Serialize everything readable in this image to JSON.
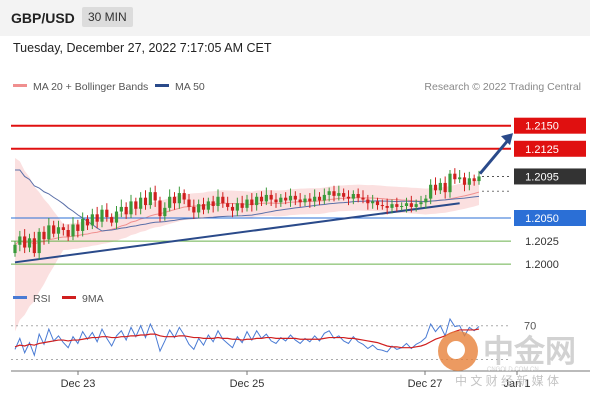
{
  "header": {
    "pair": "GBP/USD",
    "timeframe": "30 MIN"
  },
  "datetime": "Tuesday, December 27, 2022 7:17:05 AM CET",
  "legend": {
    "bb": "MA 20 + Bollinger Bands",
    "ma50": "MA 50",
    "rsi": "RSI",
    "ma9": "9MA",
    "credit": "Research © 2022 Trading Central"
  },
  "watermark": {
    "cn": "中金网",
    "domain": "CNGOLD.COM.CN",
    "tagline": "中 文 财 经 新 媒 体"
  },
  "colors": {
    "resistance": "#e01010",
    "pivot": "#2b6fd6",
    "support": "#6ab04c",
    "current": "#333333",
    "trend": "#2a4a8a",
    "ma50": "#5a6fa8",
    "band": "#f7c7c7",
    "candle_up": "#3a9a3a",
    "candle_down": "#d01f1f",
    "rsi": "#4a7bd4",
    "ma9": "#d01f1f"
  },
  "chart_data": {
    "type": "candlestick",
    "title": "GBP/USD",
    "timeframe": "30 MIN",
    "x_ticks": [
      "Dec 23",
      "Dec 25",
      "Dec 27",
      "Jan 1"
    ],
    "ylim": [
      1.1985,
      1.218
    ],
    "levels": [
      {
        "label": "1.2150",
        "value": 1.215,
        "kind": "resistance"
      },
      {
        "label": "1.2125",
        "value": 1.2125,
        "kind": "resistance"
      },
      {
        "label": "1.2095",
        "value": 1.2095,
        "kind": "current"
      },
      {
        "label": "1.2050",
        "value": 1.205,
        "kind": "pivot"
      },
      {
        "label": "1.2025",
        "value": 1.2025,
        "kind": "support"
      },
      {
        "label": "1.2000",
        "value": 1.2,
        "kind": "support"
      }
    ],
    "trendline": [
      [
        0,
        1.2002
      ],
      [
        92,
        1.2066
      ]
    ],
    "projection": [
      [
        96,
        1.2098
      ],
      [
        104,
        1.2142
      ]
    ],
    "closes": [
      1.2021,
      1.203,
      1.2018,
      1.2028,
      1.2012,
      1.2035,
      1.2027,
      1.2042,
      1.2033,
      1.204,
      1.2037,
      1.203,
      1.2043,
      1.2036,
      1.2049,
      1.2042,
      1.2054,
      1.2046,
      1.2059,
      1.2051,
      1.2045,
      1.2057,
      1.2062,
      1.2054,
      1.2068,
      1.206,
      1.2072,
      1.2064,
      1.2078,
      1.2069,
      1.2052,
      1.2061,
      1.2073,
      1.2066,
      1.2077,
      1.207,
      1.2062,
      1.2056,
      1.2065,
      1.2059,
      1.2068,
      1.2063,
      1.2073,
      1.2066,
      1.2062,
      1.2058,
      1.2066,
      1.2061,
      1.207,
      1.2064,
      1.2073,
      1.2068,
      1.2075,
      1.207,
      1.2067,
      1.2072,
      1.2069,
      1.2074,
      1.207,
      1.2067,
      1.2071,
      1.2068,
      1.2073,
      1.2069,
      1.2075,
      1.2079,
      1.2074,
      1.2077,
      1.2073,
      1.2071,
      1.2076,
      1.2072,
      1.207,
      1.2066,
      1.2068,
      1.2064,
      1.2063,
      1.2061,
      1.2065,
      1.2062,
      1.2063,
      1.2066,
      1.2062,
      1.2065,
      1.2067,
      1.2071,
      1.2086,
      1.208,
      1.2088,
      1.2078,
      1.2098,
      1.2092,
      1.2094,
      1.2086,
      1.2093,
      1.209,
      1.2095
    ],
    "rsi_levels": [
      70,
      30
    ],
    "rsi": [
      42,
      55,
      38,
      50,
      35,
      60,
      48,
      66,
      52,
      58,
      50,
      44,
      57,
      49,
      63,
      54,
      62,
      51,
      66,
      55,
      46,
      58,
      64,
      53,
      68,
      57,
      70,
      56,
      72,
      60,
      40,
      52,
      65,
      56,
      68,
      59,
      48,
      42,
      55,
      47,
      59,
      51,
      64,
      54,
      49,
      44,
      57,
      50,
      63,
      53,
      64,
      55,
      60,
      52,
      49,
      56,
      52,
      59,
      53,
      49,
      55,
      51,
      58,
      52,
      61,
      64,
      55,
      58,
      52,
      49,
      57,
      51,
      48,
      43,
      47,
      42,
      41,
      39,
      46,
      42,
      44,
      49,
      43,
      48,
      51,
      56,
      72,
      63,
      70,
      58,
      78,
      69,
      70,
      58,
      68,
      64,
      69
    ],
    "ma9": [
      45,
      47,
      46,
      48,
      47,
      49,
      50,
      51,
      52,
      53,
      53,
      52,
      53,
      53,
      54,
      55,
      56,
      56,
      57,
      57,
      56,
      56,
      57,
      57,
      58,
      58,
      59,
      59,
      60,
      60,
      58,
      57,
      57,
      57,
      58,
      58,
      57,
      56,
      56,
      55,
      55,
      55,
      56,
      55,
      55,
      54,
      54,
      53,
      54,
      54,
      55,
      55,
      56,
      56,
      55,
      55,
      55,
      55,
      55,
      54,
      54,
      54,
      54,
      54,
      55,
      56,
      56,
      56,
      56,
      55,
      55,
      54,
      53,
      52,
      51,
      50,
      48,
      46,
      45,
      45,
      44,
      44,
      44,
      45,
      46,
      48,
      51,
      54,
      56,
      58,
      61,
      63,
      65,
      65,
      65,
      65,
      66
    ]
  }
}
